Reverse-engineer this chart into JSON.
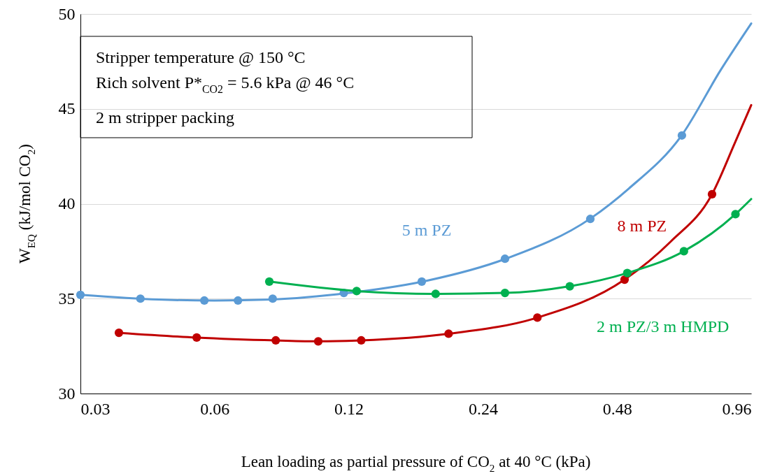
{
  "chart_data": {
    "type": "scatter",
    "xlabel": "Lean loading as partial pressure of CO$_{2}$ at 40 °C (kPa)",
    "ylabel": "W$_{EQ}$ (kJ/mol CO$_{2}$)",
    "log": "x",
    "xlim": [
      0.03,
      0.96
    ],
    "xticks": [
      0.03,
      0.06,
      0.12,
      0.24,
      0.48,
      0.96
    ],
    "ylim": [
      30,
      50
    ],
    "yticks": [
      30,
      35,
      40,
      45,
      50
    ],
    "grid": "y",
    "marker": "circle",
    "line_style": "solid",
    "annotations": [
      "Stripper temperature @ 150 °C",
      "Rich solvent P*$_{CO2}$ = 5.6 kPa @ 46 °C",
      "2 m stripper packing"
    ],
    "series": [
      {
        "name": "5 m PZ",
        "color": "#5b9bd5",
        "x": [
          0.03,
          0.0409,
          0.0569,
          0.0677,
          0.081,
          0.117,
          0.175,
          0.269,
          0.418,
          0.671
        ],
        "values": [
          35.2,
          35.0,
          34.9,
          34.9,
          35.0,
          35.3,
          35.9,
          37.1,
          39.2,
          43.6
        ]
      },
      {
        "type": "line",
        "marker": "none",
        "color": "#5b9bd5",
        "x": [
          0.03,
          0.045,
          0.06,
          0.08,
          0.12,
          0.18,
          0.27,
          0.42,
          0.51,
          0.67,
          0.82,
          0.96
        ],
        "values": [
          35.2,
          34.95,
          34.9,
          34.95,
          35.3,
          35.95,
          37.1,
          39.25,
          40.8,
          43.6,
          47.05,
          49.5
        ]
      },
      {
        "name": "8 m PZ",
        "color": "#c00000",
        "x": [
          0.0366,
          0.0547,
          0.0823,
          0.1025,
          0.128,
          0.201,
          0.318,
          0.499,
          0.784
        ],
        "values": [
          33.2,
          32.95,
          32.8,
          32.75,
          32.8,
          33.15,
          34.0,
          36.0,
          40.5
        ]
      },
      {
        "type": "line",
        "marker": "none",
        "color": "#c00000",
        "x": [
          0.0366,
          0.0547,
          0.0823,
          0.1025,
          0.128,
          0.201,
          0.318,
          0.499,
          0.633,
          0.784,
          0.882,
          0.96
        ],
        "values": [
          33.2,
          32.95,
          32.8,
          32.75,
          32.8,
          33.15,
          34.0,
          36.0,
          38.0,
          40.5,
          43.2,
          45.2
        ]
      },
      {
        "name": "2 m PZ/3 m HMPD",
        "color": "#00b050",
        "x": [
          0.0796,
          0.125,
          0.188,
          0.269,
          0.376,
          0.506,
          0.678,
          0.885
        ],
        "values": [
          35.9,
          35.4,
          35.25,
          35.3,
          35.65,
          36.35,
          37.5,
          39.45
        ]
      },
      {
        "type": "line",
        "marker": "none",
        "color": "#00b050",
        "x": [
          0.0796,
          0.125,
          0.188,
          0.269,
          0.376,
          0.506,
          0.678,
          0.885,
          0.96
        ],
        "values": [
          35.9,
          35.4,
          35.25,
          35.3,
          35.65,
          36.35,
          37.5,
          39.45,
          40.25
        ]
      }
    ]
  }
}
